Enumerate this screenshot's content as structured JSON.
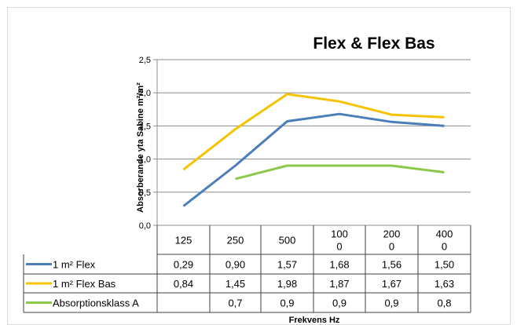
{
  "chart_data": {
    "type": "line",
    "title": "Flex & Flex Bas",
    "ylabel": "Absorberande yta Sabine m²/m²",
    "xlabel": "Frekvens Hz",
    "categories": [
      "125",
      "250",
      "500",
      "1000",
      "2000",
      "4000"
    ],
    "category_lines": [
      [
        "125"
      ],
      [
        "250"
      ],
      [
        "500"
      ],
      [
        "100",
        "0"
      ],
      [
        "200",
        "0"
      ],
      [
        "400",
        "0"
      ]
    ],
    "ylim": [
      0,
      2.5
    ],
    "yticks": [
      "0,0",
      "0,5",
      "1,0",
      "1,5",
      "2,0",
      "2,5"
    ],
    "grid": true,
    "legend": "data table below x-axis",
    "series": [
      {
        "name": "1 m² Flex",
        "color": "#4a7ebb",
        "values": [
          0.29,
          0.9,
          1.57,
          1.68,
          1.56,
          1.5
        ],
        "labels": [
          "0,29",
          "0,90",
          "1,57",
          "1,68",
          "1,56",
          "1,50"
        ]
      },
      {
        "name": "1 m² Flex Bas",
        "color": "#f5c400",
        "values": [
          0.84,
          1.45,
          1.98,
          1.87,
          1.67,
          1.63
        ],
        "labels": [
          "0,84",
          "1,45",
          "1,98",
          "1,87",
          "1,67",
          "1,63"
        ]
      },
      {
        "name": "Absorptionsklass A",
        "color": "#8cc84b",
        "values": [
          null,
          0.7,
          0.9,
          0.9,
          0.9,
          0.8
        ],
        "labels": [
          "",
          "0,7",
          "0,9",
          "0,9",
          "0,9",
          "0,8"
        ]
      }
    ]
  }
}
